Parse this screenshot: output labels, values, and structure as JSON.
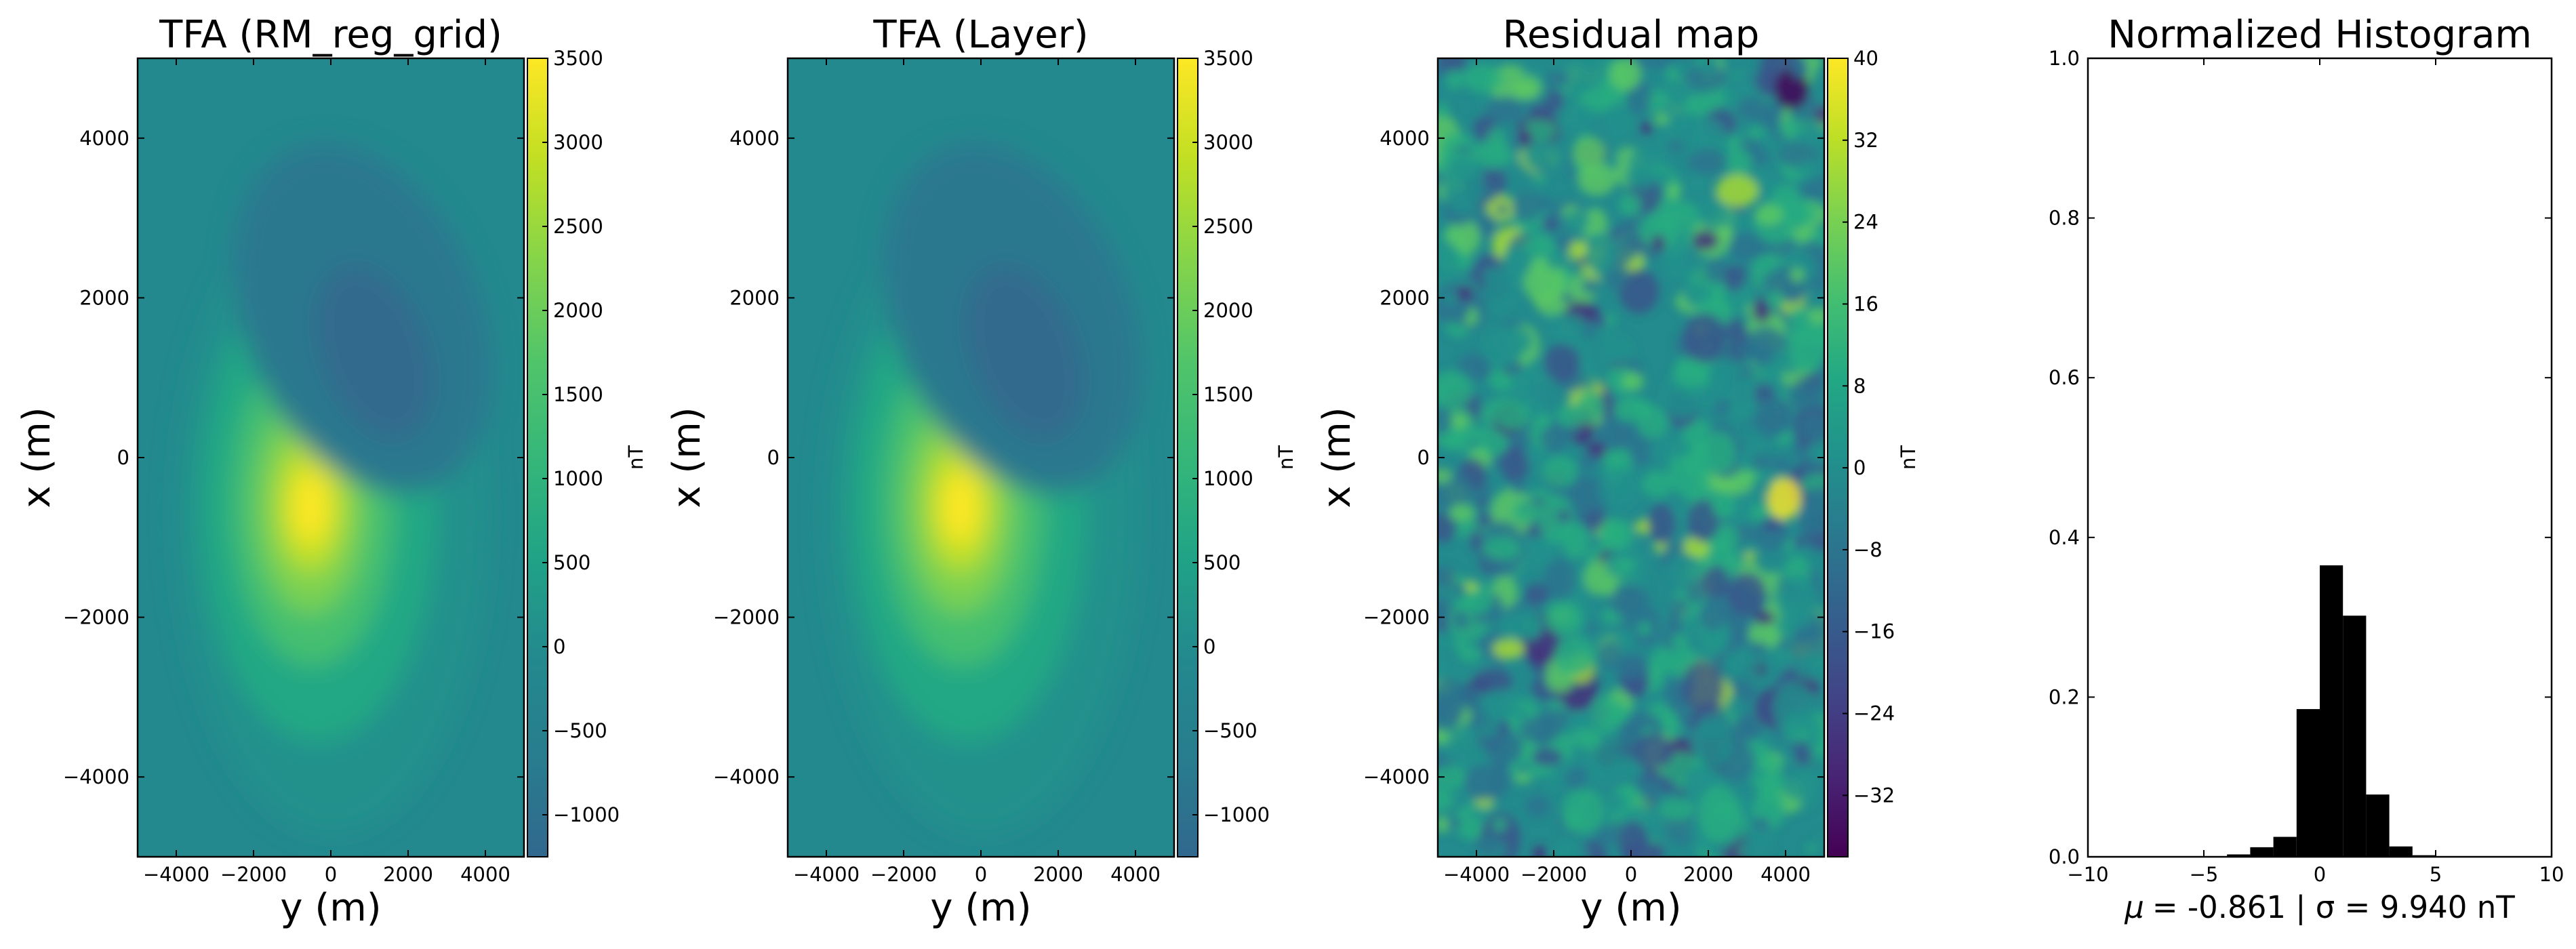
{
  "chart_data": [
    {
      "type": "heatmap",
      "title": "TFA (RM_reg_grid)",
      "xlabel": "y (m)",
      "ylabel": "x (m)",
      "xlim": [
        -5000,
        5000
      ],
      "ylim": [
        -5000,
        5000
      ],
      "xticks": [
        -4000,
        -2000,
        0,
        2000,
        4000
      ],
      "yticks": [
        -4000,
        -2000,
        0,
        2000,
        4000
      ],
      "colorbar": {
        "label": "nT",
        "min": -1250,
        "max": 3500,
        "ticks": [
          -1000,
          -500,
          0,
          500,
          1000,
          1500,
          2000,
          2500,
          3000,
          3500
        ]
      },
      "anomaly": {
        "positive_peak": {
          "y": -300,
          "x": -700,
          "value": 3500
        },
        "negative_peak": {
          "y": 1000,
          "x": 1200,
          "value": -1200
        },
        "background": 100
      }
    },
    {
      "type": "heatmap",
      "title": "TFA (Layer)",
      "xlabel": "y (m)",
      "ylabel": "x (m)",
      "xlim": [
        -5000,
        5000
      ],
      "ylim": [
        -5000,
        5000
      ],
      "xticks": [
        -4000,
        -2000,
        0,
        2000,
        4000
      ],
      "yticks": [
        -4000,
        -2000,
        0,
        2000,
        4000
      ],
      "colorbar": {
        "label": "nT",
        "min": -1250,
        "max": 3500,
        "ticks": [
          -1000,
          -500,
          0,
          500,
          1000,
          1500,
          2000,
          2500,
          3000,
          3500
        ]
      },
      "anomaly": {
        "positive_peak": {
          "y": -300,
          "x": -700,
          "value": 3500
        },
        "negative_peak": {
          "y": 1000,
          "x": 1200,
          "value": -1200
        },
        "background": 100
      }
    },
    {
      "type": "heatmap",
      "title": "Residual map",
      "xlabel": "y (m)",
      "ylabel": "x (m)",
      "xlim": [
        -5000,
        5000
      ],
      "ylim": [
        -5000,
        5000
      ],
      "xticks": [
        -4000,
        -2000,
        0,
        2000,
        4000
      ],
      "yticks": [
        -4000,
        -2000,
        0,
        2000,
        4000
      ],
      "colorbar": {
        "label": "nT",
        "min": -38,
        "max": 40,
        "ticks": [
          -32,
          -24,
          -16,
          -8,
          0,
          8,
          16,
          24,
          32,
          40
        ]
      },
      "pattern": "random noise"
    },
    {
      "type": "bar",
      "title": "Normalized Histogram",
      "xlim": [
        -10,
        10
      ],
      "ylim": [
        0,
        1
      ],
      "xticks": [
        -10,
        -5,
        0,
        5,
        10
      ],
      "yticks": [
        0.0,
        0.2,
        0.4,
        0.6,
        0.8,
        1.0
      ],
      "bin_width": 1,
      "bins": [
        {
          "x0": -4,
          "value": 0.003
        },
        {
          "x0": -3,
          "value": 0.012
        },
        {
          "x0": -2,
          "value": 0.025
        },
        {
          "x0": -1,
          "value": 0.185
        },
        {
          "x0": 0,
          "value": 0.365
        },
        {
          "x0": 1,
          "value": 0.302
        },
        {
          "x0": 2,
          "value": 0.078
        },
        {
          "x0": 3,
          "value": 0.013
        },
        {
          "x0": 4,
          "value": 0.002
        }
      ],
      "stats": {
        "mu": "-0.861",
        "sigma": "9.940",
        "unit": "nT"
      },
      "stat_text": "= -0.861 | σ = 9.940 nT",
      "mu_symbol": "μ"
    }
  ]
}
